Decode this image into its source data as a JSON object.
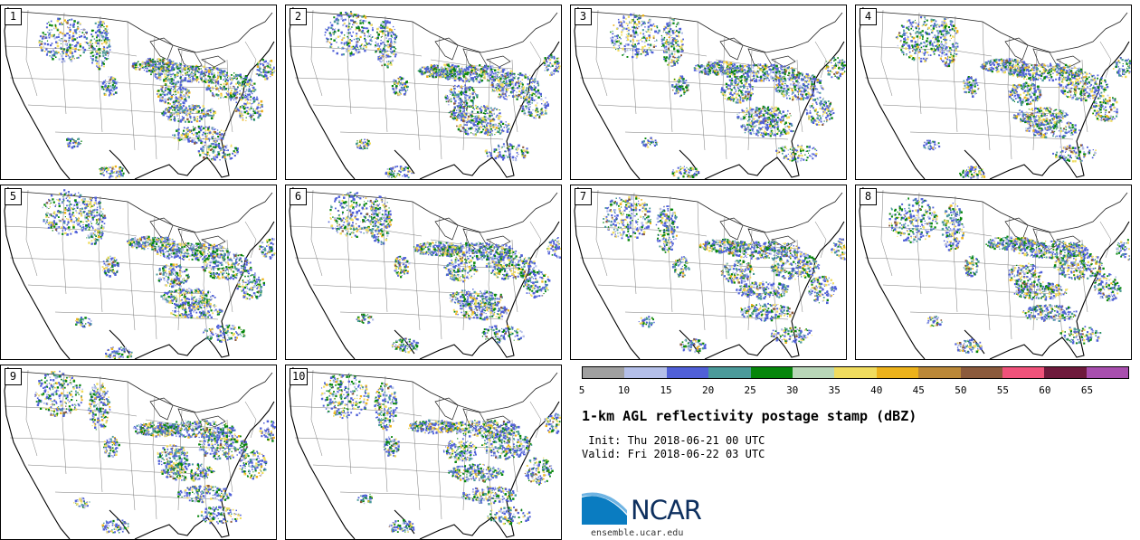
{
  "panels": [
    {
      "label": "1"
    },
    {
      "label": "2"
    },
    {
      "label": "3"
    },
    {
      "label": "4"
    },
    {
      "label": "5"
    },
    {
      "label": "6"
    },
    {
      "label": "7"
    },
    {
      "label": "8"
    },
    {
      "label": "9"
    },
    {
      "label": "10"
    }
  ],
  "colorbar": {
    "colors": [
      "#a0a0a0",
      "#b4bfe9",
      "#5060d8",
      "#4b9a9a",
      "#06860b",
      "#b9d7b8",
      "#f0dc5e",
      "#ecb21b",
      "#bb8838",
      "#8b5a3c",
      "#f0527a",
      "#6e1a3c",
      "#a84eae"
    ],
    "ticks": [
      "5",
      "10",
      "15",
      "20",
      "25",
      "30",
      "35",
      "40",
      "45",
      "50",
      "55",
      "60",
      "65"
    ]
  },
  "product_title": "1-km AGL reflectivity postage stamp (dBZ)",
  "init_text": " Init: Thu 2018-06-21 00 UTC",
  "valid_text": "Valid: Fri 2018-06-22 03 UTC",
  "logo": {
    "text": "NCAR",
    "url_text": "ensemble.ucar.edu",
    "primary_color": "#0a7cc1",
    "dark_color": "#0d2f5e"
  }
}
